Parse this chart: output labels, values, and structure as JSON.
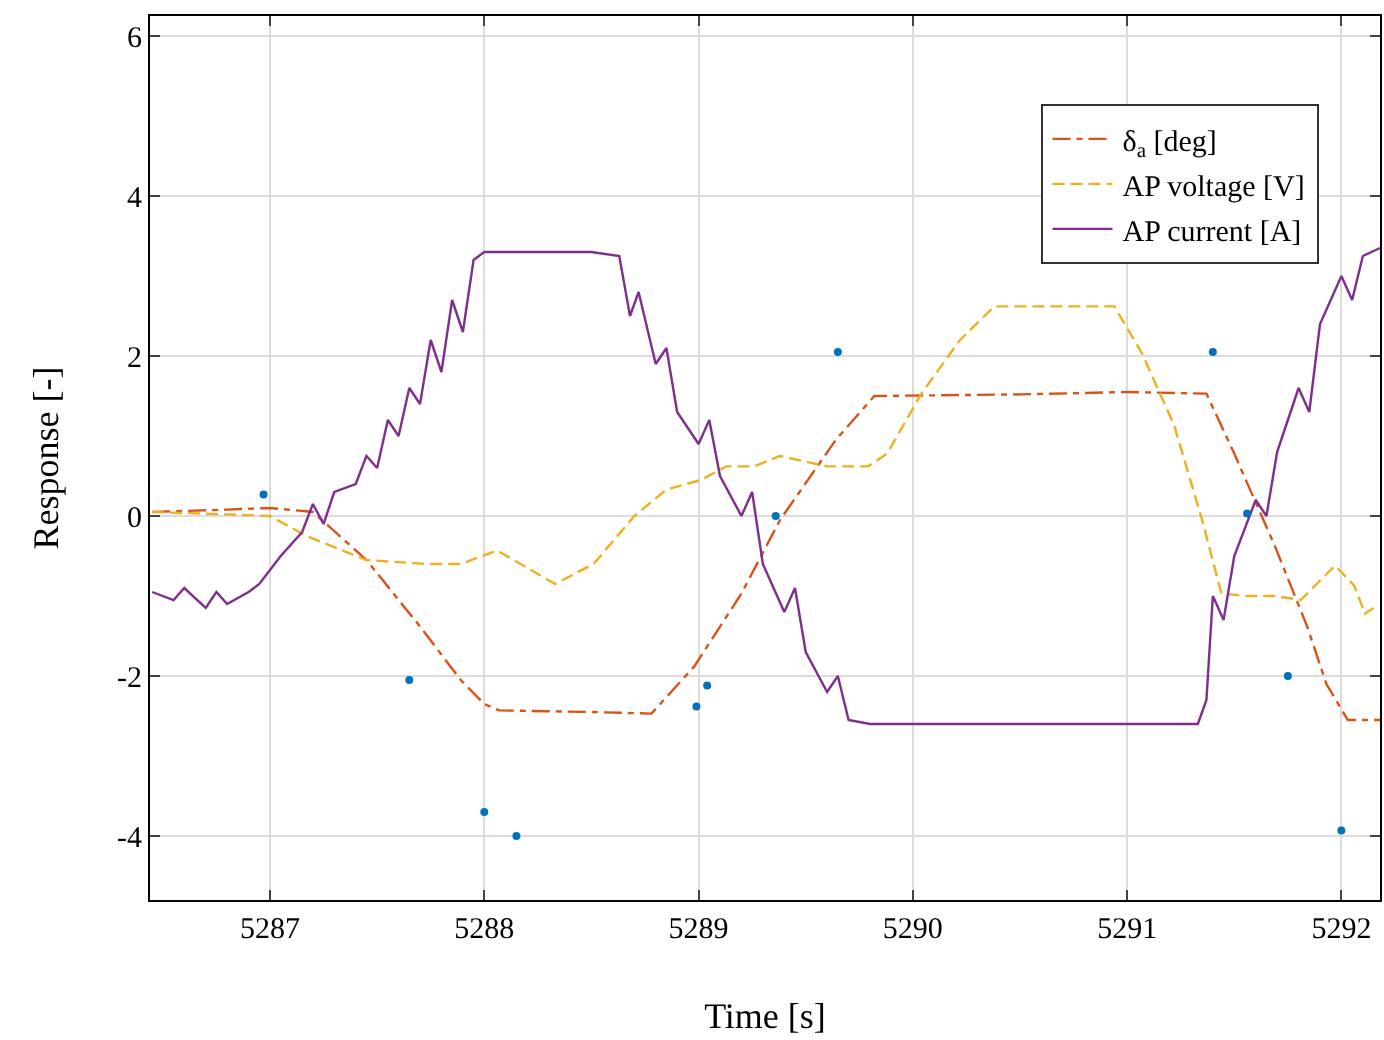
{
  "chart_data": {
    "type": "line",
    "xlabel": "Time [s]",
    "ylabel": "Response [-]",
    "xlim": [
      5286.44,
      5292.18
    ],
    "xticks": [
      5287,
      5288,
      5289,
      5290,
      5291,
      5292
    ],
    "ylim": [
      -4.8,
      6.25
    ],
    "yticks": [
      -4,
      -2,
      0,
      2,
      4,
      6
    ],
    "grid": true,
    "legend": "top right",
    "marker": "none",
    "series": [
      {
        "name": "δ$_{a}$ [deg]",
        "color": "#d95319",
        "line_style": "dashdot",
        "x": [
          5286.45,
          5286.8,
          5287.0,
          5287.2,
          5287.45,
          5287.7,
          5287.89,
          5288.0,
          5288.07,
          5288.5,
          5288.78,
          5288.98,
          5289.2,
          5289.38,
          5289.64,
          5289.82,
          5290.5,
          5291.0,
          5291.37,
          5291.5,
          5291.69,
          5291.84,
          5291.93,
          5292.03,
          5292.18
        ],
        "values": [
          0.05,
          0.08,
          0.1,
          0.05,
          -0.55,
          -1.38,
          -2.05,
          -2.35,
          -2.43,
          -2.45,
          -2.47,
          -1.88,
          -0.97,
          -0.05,
          0.95,
          1.5,
          1.52,
          1.55,
          1.53,
          0.78,
          -0.38,
          -1.38,
          -2.1,
          -2.55,
          -2.55
        ]
      },
      {
        "name": "AP voltage [V]",
        "color": "#edb120",
        "line_style": "dashed",
        "x": [
          5286.45,
          5286.8,
          5287.0,
          5287.17,
          5287.45,
          5287.73,
          5287.89,
          5288.06,
          5288.33,
          5288.51,
          5288.7,
          5288.85,
          5289.01,
          5289.13,
          5289.26,
          5289.38,
          5289.6,
          5289.79,
          5289.88,
          5290.04,
          5290.22,
          5290.38,
          5290.94,
          5291.07,
          5291.22,
          5291.35,
          5291.44,
          5291.56,
          5291.69,
          5291.81,
          5291.97,
          5292.06,
          5292.11,
          5292.15
        ],
        "values": [
          0.05,
          0.02,
          0.0,
          -0.25,
          -0.55,
          -0.6,
          -0.6,
          -0.43,
          -0.85,
          -0.6,
          0.0,
          0.33,
          0.45,
          0.62,
          0.62,
          0.75,
          0.62,
          0.62,
          0.78,
          1.53,
          2.2,
          2.62,
          2.62,
          2.03,
          1.13,
          -0.05,
          -0.97,
          -1.0,
          -1.0,
          -1.05,
          -0.62,
          -0.87,
          -1.22,
          -1.15
        ]
      },
      {
        "name": "AP current [A]",
        "color": "#7e2f8e",
        "line_style": "solid",
        "x": [
          5286.45,
          5286.55,
          5286.6,
          5286.7,
          5286.75,
          5286.8,
          5286.9,
          5286.95,
          5287.05,
          5287.15,
          5287.2,
          5287.25,
          5287.3,
          5287.4,
          5287.45,
          5287.5,
          5287.55,
          5287.6,
          5287.65,
          5287.7,
          5287.75,
          5287.8,
          5287.85,
          5287.9,
          5287.95,
          5288.0,
          5288.5,
          5288.63,
          5288.68,
          5288.72,
          5288.8,
          5288.85,
          5288.9,
          5289.0,
          5289.05,
          5289.1,
          5289.2,
          5289.25,
          5289.3,
          5289.4,
          5289.45,
          5289.5,
          5289.6,
          5289.65,
          5289.7,
          5289.8,
          5291.33,
          5291.37,
          5291.4,
          5291.45,
          5291.5,
          5291.6,
          5291.65,
          5291.7,
          5291.8,
          5291.85,
          5291.9,
          5292.0,
          5292.05,
          5292.1,
          5292.18
        ],
        "values": [
          -0.95,
          -1.05,
          -0.9,
          -1.15,
          -0.95,
          -1.1,
          -0.95,
          -0.85,
          -0.5,
          -0.2,
          0.15,
          -0.1,
          0.3,
          0.4,
          0.75,
          0.6,
          1.2,
          1.0,
          1.6,
          1.4,
          2.2,
          1.8,
          2.7,
          2.3,
          3.2,
          3.3,
          3.3,
          3.25,
          2.5,
          2.8,
          1.9,
          2.1,
          1.3,
          0.9,
          1.2,
          0.5,
          0.0,
          0.3,
          -0.6,
          -1.2,
          -0.9,
          -1.7,
          -2.2,
          -2.0,
          -2.55,
          -2.6,
          -2.6,
          -2.3,
          -1.0,
          -1.3,
          -0.5,
          0.2,
          0.0,
          0.8,
          1.6,
          1.3,
          2.4,
          3.0,
          2.7,
          3.25,
          3.35
        ]
      },
      {
        "type": "scatter",
        "marker": "circle",
        "color": "#0072bd",
        "x": [
          5286.97,
          5287.65,
          5288.0,
          5288.15,
          5288.99,
          5289.04,
          5289.36,
          5289.65,
          5291.4,
          5291.56,
          5291.75,
          5292.0
        ],
        "values": [
          0.27,
          -2.05,
          -3.7,
          -4.0,
          -2.38,
          -2.12,
          0.0,
          2.05,
          2.05,
          0.03,
          -2.0,
          -3.93
        ]
      }
    ]
  }
}
